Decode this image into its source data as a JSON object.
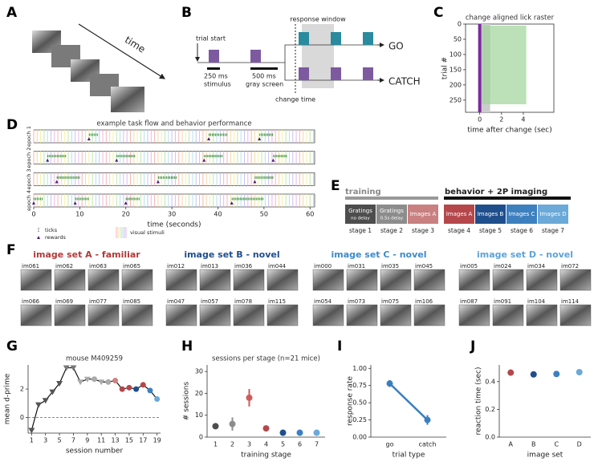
{
  "panel_letters": [
    "A",
    "B",
    "C",
    "D",
    "E",
    "F",
    "G",
    "H",
    "I",
    "J"
  ],
  "panel_a": {
    "label": "time"
  },
  "panel_b": {
    "trial_start": "trial start",
    "stimulus_duration": "250 ms",
    "stimulus_label": "stimulus",
    "gray_duration": "500 ms",
    "gray_label": "gray screen",
    "response_window": "response window",
    "go": "GO",
    "catch": "CATCH",
    "change_time": "change time"
  },
  "panel_e": {
    "training": "training",
    "imaging": "behavior + 2P imaging",
    "boxes": [
      {
        "label": "Gratings",
        "sublabel": "no delay",
        "stage": "stage 1",
        "color": "#4d4d4d"
      },
      {
        "label": "Gratings",
        "sublabel": "0.5s delay",
        "stage": "stage 2",
        "color": "#8c8c8c"
      },
      {
        "label": "Images A",
        "stage": "stage 3",
        "color": "#c98080"
      },
      {
        "label": "Images A",
        "stage": "stage 4",
        "color": "#b5474b"
      },
      {
        "label": "Images B",
        "stage": "stage 5",
        "color": "#1f4e8c"
      },
      {
        "label": "Images C",
        "stage": "stage 6",
        "color": "#3d80bf"
      },
      {
        "label": "Images D",
        "stage": "stage 7",
        "color": "#6aa9d8"
      }
    ]
  },
  "panel_f": {
    "groups": [
      {
        "title": "image set A - familiar",
        "color": "#b03a3a",
        "images": [
          "im061",
          "im062",
          "im063",
          "im065",
          "im066",
          "im069",
          "im077",
          "im085"
        ]
      },
      {
        "title": "image set B - novel",
        "color": "#1f4e8c",
        "images": [
          "im012",
          "im013",
          "im036",
          "im044",
          "im047",
          "im057",
          "im078",
          "im115"
        ]
      },
      {
        "title": "image set C - novel",
        "color": "#3d8ac9",
        "images": [
          "im000",
          "im031",
          "im035",
          "im045",
          "im054",
          "im073",
          "im075",
          "im106"
        ]
      },
      {
        "title": "image set D - novel",
        "color": "#5ea2d6",
        "images": [
          "im005",
          "im024",
          "im034",
          "im072",
          "im087",
          "im091",
          "im104",
          "im114"
        ]
      }
    ]
  },
  "chart_data": [
    {
      "type": "raster",
      "title": "change aligned lick raster",
      "xlabel": "time after change (sec)",
      "ylabel": "trial #",
      "xlim": [
        -1.3,
        6.8
      ],
      "xticks": [
        0,
        2,
        4
      ],
      "ylim": [
        0,
        290
      ],
      "yticks": [
        0,
        50,
        100,
        150,
        200,
        250
      ],
      "y_inverted": true
    },
    {
      "type": "timeline",
      "title": "example task flow and behavior performance",
      "rows": [
        "epoch 1",
        "epoch 2",
        "epoch 3",
        "epoch 4"
      ],
      "xlabel": "time (seconds)",
      "xlim": [
        0,
        61
      ],
      "xticks": [
        0,
        10,
        20,
        30,
        40,
        50,
        60
      ],
      "legend": [
        "ticks",
        "rewards",
        "visual stimuli"
      ]
    },
    {
      "type": "line",
      "title": "mouse M409259",
      "xlabel": "session number",
      "ylabel": "mean d-prime",
      "x": [
        1,
        2,
        3,
        4,
        5,
        6,
        7,
        8,
        9,
        10,
        11,
        12,
        13,
        14,
        15,
        16,
        17,
        18,
        19
      ],
      "values": [
        -0.9,
        0.9,
        1.2,
        1.8,
        2.4,
        3.5,
        3.5,
        2.5,
        2.7,
        2.7,
        2.5,
        2.5,
        2.6,
        2.0,
        2.1,
        2.0,
        2.3,
        1.9,
        1.3
      ],
      "colors": [
        "#555",
        "#555",
        "#555",
        "#555",
        "#555",
        "#777",
        "#777",
        "#aaa",
        "#aaa",
        "#aaa",
        "#aaa",
        "#aaa",
        "#d08080",
        "#b5474b",
        "#b5474b",
        "#1f4e8c",
        "#b5474b",
        "#3d80bf",
        "#6aa9d8"
      ],
      "markers": [
        "triangle",
        "triangle",
        "triangle",
        "triangle",
        "triangle",
        "triangle",
        "triangle",
        "triangle",
        "triangle",
        "circle",
        "triangle",
        "circle",
        "circle",
        "circle",
        "circle",
        "circle",
        "circle",
        "circle",
        "circle"
      ],
      "color": "#111",
      "xlim": [
        0.5,
        19.5
      ],
      "ylim": [
        -1.1,
        3.7
      ],
      "xticks": [
        1,
        3,
        5,
        7,
        9,
        11,
        13,
        15,
        17,
        19
      ],
      "yticks": [
        0,
        2
      ],
      "reference_line": 0
    },
    {
      "type": "errorpoint",
      "title": "sessions per stage (n=21 mice)",
      "xlabel": "training stage",
      "ylabel": "# sessions",
      "categories": [
        "1",
        "2",
        "3",
        "4",
        "5",
        "6",
        "7"
      ],
      "values": [
        5,
        6,
        18,
        4,
        2,
        2,
        2
      ],
      "errors": [
        1,
        3,
        4,
        1,
        0.5,
        0.5,
        0.5
      ],
      "colors": [
        "#4d4d4d",
        "#8c8c8c",
        "#d15b5b",
        "#b5474b",
        "#1f4e8c",
        "#3d80bf",
        "#6aa9d8"
      ],
      "ylim": [
        0,
        33
      ],
      "yticks": [
        0,
        10,
        20,
        30
      ]
    },
    {
      "type": "errorpoint",
      "xlabel": "trial type",
      "ylabel": "response rate",
      "categories": [
        "go",
        "catch"
      ],
      "values": [
        0.78,
        0.25
      ],
      "errors": [
        0.05,
        0.07
      ],
      "colors": [
        "#3a7fbf",
        "#3a7fbf"
      ],
      "connect": true,
      "ylim": [
        0,
        1.05
      ],
      "yticks": [
        {
          "value": 0,
          "label": "0.00"
        },
        {
          "value": 0.25,
          "label": "0.25"
        },
        {
          "value": 0.5,
          "label": "0.50"
        },
        {
          "value": 0.75,
          "label": "0.75"
        },
        {
          "value": 1,
          "label": "1.00"
        }
      ]
    },
    {
      "type": "errorpoint",
      "xlabel": "image set",
      "ylabel": "reaction time (sec)",
      "categories": [
        "A",
        "B",
        "C",
        "D"
      ],
      "values": [
        0.465,
        0.452,
        0.455,
        0.468
      ],
      "errors": [
        0.02,
        0.02,
        0.02,
        0.02
      ],
      "colors": [
        "#b5474b",
        "#1f4e8c",
        "#3d80bf",
        "#6aa9d8"
      ],
      "ylim": [
        0,
        0.52
      ],
      "yticks": [
        {
          "value": 0,
          "label": "0.0"
        },
        {
          "value": 0.2,
          "label": "0.2"
        },
        {
          "value": 0.4,
          "label": "0.4"
        }
      ]
    }
  ]
}
